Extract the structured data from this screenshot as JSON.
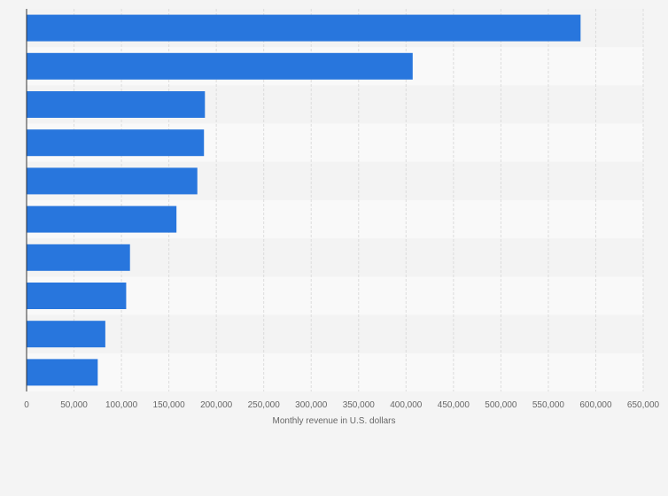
{
  "chart_data": {
    "type": "bar",
    "orientation": "horizontal",
    "title": "",
    "xlabel": "Monthly revenue in U.S. dollars",
    "ylabel": "",
    "xlim": [
      0,
      650000
    ],
    "x_ticks": [
      0,
      50000,
      100000,
      150000,
      200000,
      250000,
      300000,
      350000,
      400000,
      450000,
      500000,
      550000,
      600000,
      650000
    ],
    "x_tick_labels": [
      "0",
      "50,000",
      "100,000",
      "150,000",
      "200,000",
      "250,000",
      "300,000",
      "350,000",
      "400,000",
      "450,000",
      "500,000",
      "550,000",
      "600,000",
      "650,000"
    ],
    "categories": [
      "",
      "",
      "",
      "",
      "",
      "",
      "",
      "",
      "",
      ""
    ],
    "values": [
      584000,
      407000,
      188000,
      187000,
      180000,
      158000,
      109000,
      105000,
      83000,
      75000
    ],
    "grid": true,
    "colors": {
      "bar": "#2876dd",
      "band_light": "#f9f9f9",
      "band_dark": "#f3f3f3",
      "grid": "#dcdcdc",
      "axis": "#333333",
      "background": "#f4f4f4"
    }
  }
}
